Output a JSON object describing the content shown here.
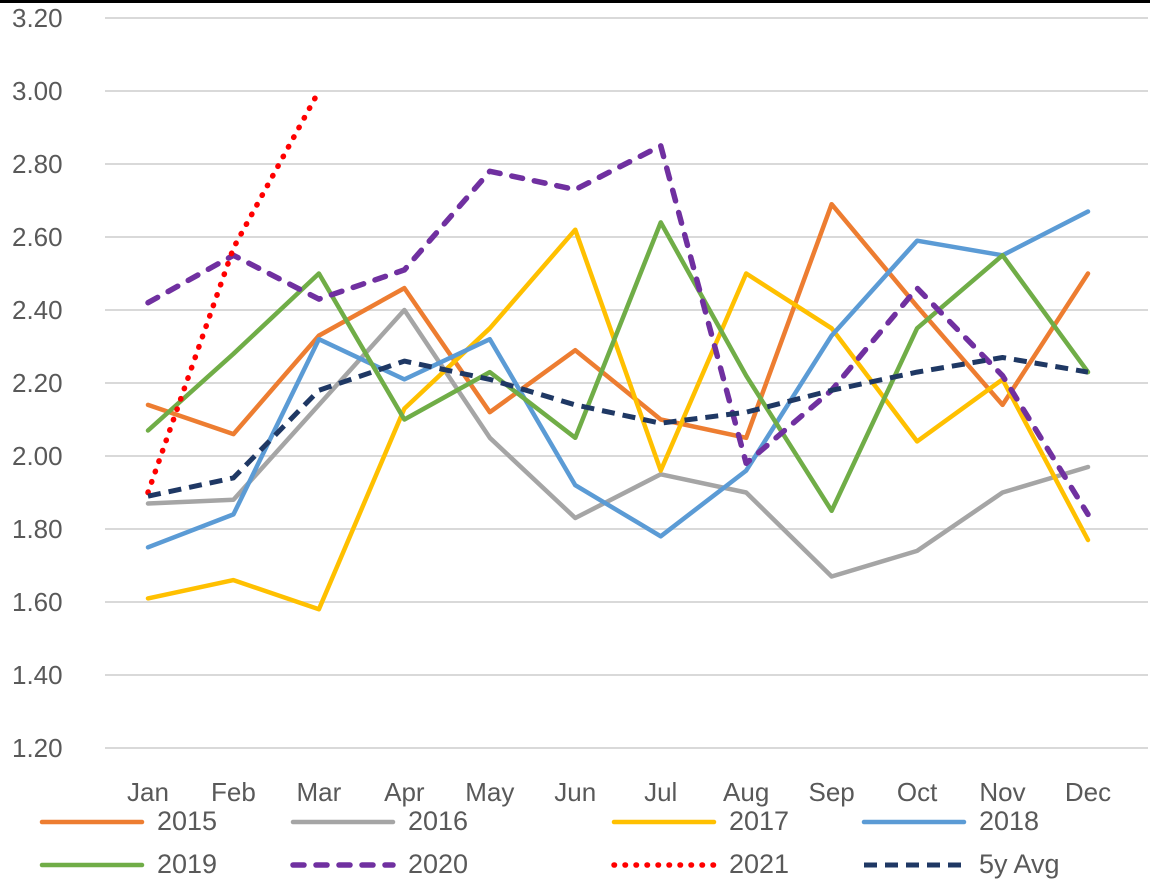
{
  "chart_data": {
    "type": "line",
    "title": "",
    "xlabel": "",
    "ylabel": "",
    "ylim": [
      1.2,
      3.2
    ],
    "grid": "horizontal",
    "legend_position": "bottom",
    "x_labels": [
      "Jan",
      "Feb",
      "Mar",
      "Apr",
      "May",
      "Jun",
      "Jul",
      "Aug",
      "Sep",
      "Oct",
      "Nov",
      "Dec"
    ],
    "y_ticks": [
      "3.20",
      "3.00",
      "2.80",
      "2.60",
      "2.40",
      "2.20",
      "2.00",
      "1.80",
      "1.60",
      "1.40",
      "1.20"
    ],
    "y_tick_values": [
      3.2,
      3.0,
      2.8,
      2.6,
      2.4,
      2.2,
      2.0,
      1.8,
      1.6,
      1.4,
      1.2
    ],
    "gridline_color": "#d9d9d9",
    "tick_label_color": "#595959",
    "series": [
      {
        "name": "2015",
        "color": "#ED7D31",
        "style": "solid",
        "values": [
          2.14,
          2.06,
          2.33,
          2.46,
          2.12,
          2.29,
          2.1,
          2.05,
          2.69,
          2.41,
          2.14,
          2.5
        ]
      },
      {
        "name": "2016",
        "color": "#A5A5A5",
        "style": "solid",
        "values": [
          1.87,
          1.88,
          2.14,
          2.4,
          2.05,
          1.83,
          1.95,
          1.9,
          1.67,
          1.74,
          1.9,
          1.97
        ]
      },
      {
        "name": "2017",
        "color": "#FFC000",
        "style": "solid",
        "values": [
          1.61,
          1.66,
          1.58,
          2.13,
          2.35,
          2.62,
          1.96,
          2.5,
          2.35,
          2.04,
          2.21,
          1.77
        ]
      },
      {
        "name": "2018",
        "color": "#5B9BD5",
        "style": "solid",
        "values": [
          1.75,
          1.84,
          2.32,
          2.21,
          2.32,
          1.92,
          1.78,
          1.96,
          2.33,
          2.59,
          2.55,
          2.67
        ]
      },
      {
        "name": "2019",
        "color": "#70AD47",
        "style": "solid",
        "values": [
          2.07,
          2.28,
          2.5,
          2.1,
          2.23,
          2.05,
          2.64,
          2.22,
          1.85,
          2.35,
          2.55,
          2.23
        ]
      },
      {
        "name": "2020",
        "color": "#7030A0",
        "style": "dashed",
        "values": [
          2.42,
          2.55,
          2.43,
          2.51,
          2.78,
          2.73,
          2.85,
          1.98,
          2.18,
          2.46,
          2.22,
          1.84
        ]
      },
      {
        "name": "2021",
        "color": "#FF0000",
        "style": "dotted",
        "values": [
          1.9,
          2.57,
          3.0,
          null,
          null,
          null,
          null,
          null,
          null,
          null,
          null,
          null
        ]
      },
      {
        "name": "5y Avg",
        "color": "#1F3864",
        "style": "dashed",
        "values": [
          1.89,
          1.94,
          2.18,
          2.26,
          2.21,
          2.14,
          2.09,
          2.12,
          2.18,
          2.23,
          2.27,
          2.23
        ]
      }
    ]
  }
}
